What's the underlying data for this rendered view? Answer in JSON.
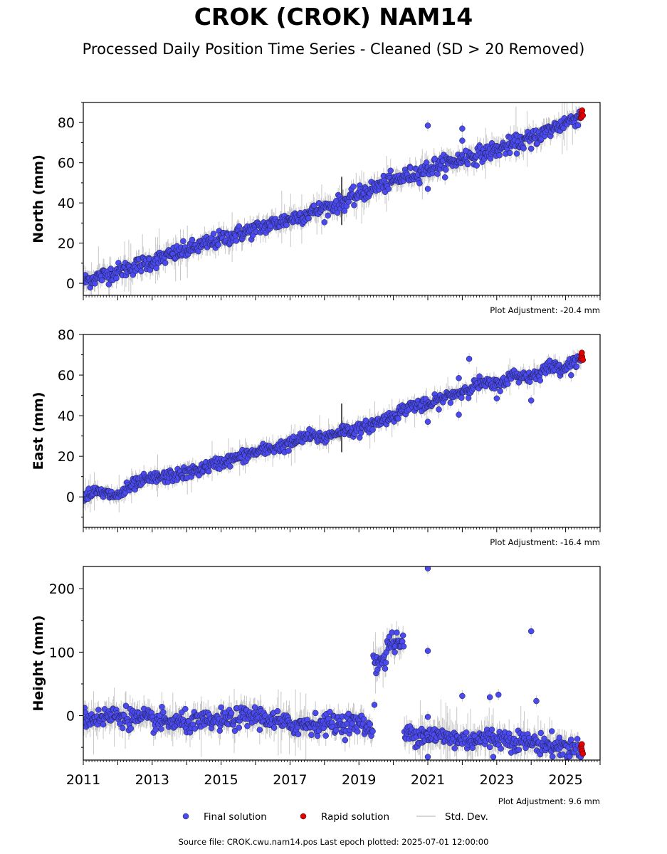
{
  "title": "CROK (CROK) NAM14",
  "subtitle": "Processed Daily Position Time Series - Cleaned (SD > 20 Removed)",
  "footer": "Source file: CROK.cwu.nam14.pos  Last epoch plotted: 2025-07-01 12:00:00",
  "legend": {
    "final_label": "Final solution",
    "rapid_label": "Rapid solution",
    "std_label": "Std. Dev."
  },
  "colors": {
    "final": "#4a4af0",
    "rapid": "#e00000",
    "std": "#c8c8c8"
  },
  "chart_data": [
    {
      "type": "scatter",
      "ylabel": "North (mm)",
      "adjustment": "Plot Adjustment: -20.4 mm",
      "xlim": [
        2011.0,
        2026.0
      ],
      "ylim": [
        -6,
        90
      ],
      "yticks": [
        0,
        20,
        40,
        60,
        80
      ],
      "trend": [
        [
          2011.0,
          1.0
        ],
        [
          2013.0,
          11.0
        ],
        [
          2015.0,
          22.0
        ],
        [
          2017.0,
          32.0
        ],
        [
          2018.5,
          40.0
        ],
        [
          2019.5,
          48.0
        ],
        [
          2021.0,
          57.0
        ],
        [
          2022.0,
          62.0
        ],
        [
          2023.0,
          66.5
        ],
        [
          2024.0,
          72.0
        ],
        [
          2025.5,
          84.0
        ]
      ],
      "scatter_sd": 2.0,
      "outliers": [
        [
          2021.0,
          78.5
        ],
        [
          2021.0,
          47.0
        ],
        [
          2022.0,
          77.0
        ],
        [
          2022.0,
          71.0
        ],
        [
          2024.0,
          67.0
        ],
        [
          2021.2,
          62.0
        ],
        [
          2022.1,
          66.0
        ]
      ],
      "rapid": [
        [
          2025.45,
          82.5
        ],
        [
          2025.46,
          85.0
        ],
        [
          2025.47,
          84.0
        ],
        [
          2025.48,
          86.0
        ],
        [
          2025.5,
          83.5
        ]
      ]
    },
    {
      "type": "scatter",
      "ylabel": "East (mm)",
      "adjustment": "Plot Adjustment: -16.4 mm",
      "xlim": [
        2011.0,
        2026.0
      ],
      "ylim": [
        -15,
        80
      ],
      "yticks": [
        0,
        20,
        40,
        60,
        80
      ],
      "trend": [
        [
          2011.0,
          0.0
        ],
        [
          2011.3,
          2.5
        ],
        [
          2012.0,
          0.5
        ],
        [
          2012.5,
          6.5
        ],
        [
          2013.0,
          9.0
        ],
        [
          2014.0,
          11.5
        ],
        [
          2015.0,
          17.0
        ],
        [
          2016.0,
          22.0
        ],
        [
          2017.0,
          26.0
        ],
        [
          2017.5,
          30.0
        ],
        [
          2018.0,
          29.0
        ],
        [
          2018.5,
          33.0
        ],
        [
          2019.0,
          33.0
        ],
        [
          2020.0,
          40.0
        ],
        [
          2020.5,
          45.0
        ],
        [
          2021.0,
          45.0
        ],
        [
          2021.5,
          49.0
        ],
        [
          2022.0,
          52.0
        ],
        [
          2022.5,
          56.0
        ],
        [
          2023.0,
          55.0
        ],
        [
          2023.5,
          60.0
        ],
        [
          2024.0,
          59.0
        ],
        [
          2024.5,
          64.0
        ],
        [
          2025.0,
          64.0
        ],
        [
          2025.5,
          69.0
        ]
      ],
      "scatter_sd": 1.5,
      "outliers": [
        [
          2022.2,
          68.0
        ],
        [
          2021.0,
          37.0
        ],
        [
          2021.9,
          40.5
        ],
        [
          2024.0,
          47.5
        ],
        [
          2021.9,
          58.5
        ],
        [
          2023.0,
          48.5
        ]
      ],
      "rapid": [
        [
          2025.45,
          68.0
        ],
        [
          2025.46,
          70.0
        ],
        [
          2025.48,
          69.0
        ],
        [
          2025.5,
          67.5
        ],
        [
          2025.47,
          71.0
        ]
      ]
    },
    {
      "type": "scatter",
      "ylabel": "Height (mm)",
      "adjustment": "Plot Adjustment: 9.6 mm",
      "xlim": [
        2011.0,
        2026.0
      ],
      "ylim": [
        -70,
        235
      ],
      "yticks": [
        0,
        100,
        200
      ],
      "xticks": [
        2011,
        2013,
        2015,
        2017,
        2019,
        2021,
        2023,
        2025
      ],
      "trend": [
        [
          2011.0,
          -5.0
        ],
        [
          2012.0,
          0.0
        ],
        [
          2013.0,
          -8.0
        ],
        [
          2014.0,
          -12.0
        ],
        [
          2015.0,
          -8.0
        ],
        [
          2016.0,
          0.0
        ],
        [
          2017.0,
          -15.0
        ],
        [
          2018.0,
          -12.0
        ],
        [
          2019.0,
          -12.0
        ],
        [
          2019.3,
          -20.0
        ]
      ],
      "cluster1": [
        [
          2019.45,
          86.0
        ],
        [
          2019.75,
          86.0
        ]
      ],
      "cluster2": [
        [
          2019.7,
          118.0
        ],
        [
          2020.3,
          112.0
        ]
      ],
      "trend2": [
        [
          2020.25,
          -28.0
        ],
        [
          2021.0,
          -30.0
        ],
        [
          2022.0,
          -38.0
        ],
        [
          2023.0,
          -35.0
        ],
        [
          2024.0,
          -42.0
        ],
        [
          2025.5,
          -55.0
        ]
      ],
      "scatter_sd": 8.0,
      "outliers": [
        [
          2021.0,
          232.0
        ],
        [
          2021.0,
          102.0
        ],
        [
          2024.0,
          133.0
        ],
        [
          2022.0,
          31.0
        ],
        [
          2022.8,
          29.0
        ],
        [
          2023.05,
          33.0
        ],
        [
          2024.15,
          23.0
        ],
        [
          2019.45,
          17.0
        ],
        [
          2021.0,
          -2.0
        ],
        [
          2021.0,
          -65.0
        ],
        [
          2022.9,
          -65.0
        ]
      ],
      "rapid": [
        [
          2025.45,
          -48.0
        ],
        [
          2025.46,
          -52.0
        ],
        [
          2025.48,
          -56.0
        ],
        [
          2025.5,
          -60.0
        ],
        [
          2025.47,
          -45.0
        ]
      ]
    }
  ]
}
